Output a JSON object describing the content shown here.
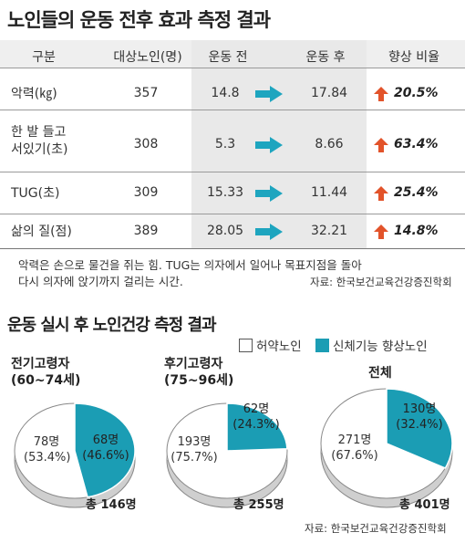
{
  "title": "노인들의 운동 전후 효과 측정 결과",
  "table": {
    "headers": [
      "구분",
      "대상노인(명)",
      "운동 전",
      "운동 후",
      "향상 비율"
    ],
    "rows": [
      {
        "label": "악력(㎏)",
        "n": "357",
        "before": "14.8",
        "after": "17.84",
        "improve": "20.5%"
      },
      {
        "label": "한 발 들고 서있기(초)",
        "label_lines": [
          "한 발 들고",
          "서있기(초)"
        ],
        "n": "308",
        "before": "5.3",
        "after": "8.66",
        "improve": "63.4%"
      },
      {
        "label": "TUG(초)",
        "n": "309",
        "before": "15.33",
        "after": "11.44",
        "improve": "25.4%"
      },
      {
        "label": "삶의 질(점)",
        "n": "389",
        "before": "28.05",
        "after": "32.21",
        "improve": "14.8%"
      }
    ]
  },
  "note_lines": [
    "악력은 손으로 물건을 쥐는 힘. TUG는 의자에서 일어나 목표지점을 돌아",
    "다시 의자에 앉기까지 걸리는 시간."
  ],
  "source1": "자료: 한국보건교육건강증진학회",
  "title2": "운동 실시 후 노인건강 측정 결과",
  "legend": {
    "frail": "허약노인",
    "improved": "신체기능 향상노인"
  },
  "colors": {
    "frail": "#ffffff",
    "improved": "#1b9db4",
    "arrow_right": "#1ea5bf",
    "arrow_up": "#e2532a",
    "shade": "#e9e9e9"
  },
  "pies": [
    {
      "title_lines": [
        "전기고령자",
        "(60~74세)"
      ],
      "frail_label": "78명",
      "frail_pct": "(53.4%)",
      "improved_label": "68명",
      "improved_pct": "(46.6%)",
      "total": "총 146명"
    },
    {
      "title_lines": [
        "후기고령자",
        "(75~96세)"
      ],
      "frail_label": "193명",
      "frail_pct": "(75.7%)",
      "improved_label": "62명",
      "improved_pct": "(24.3%)",
      "total": "총 255명"
    },
    {
      "title_lines": [
        "전체"
      ],
      "frail_label": "271명",
      "frail_pct": "(67.6%)",
      "improved_label": "130명",
      "improved_pct": "(32.4%)",
      "total": "총 401명"
    }
  ],
  "source2": "자료: 한국보건교육건강증진학회",
  "chart_data": [
    {
      "type": "table",
      "title": "노인들의 운동 전후 효과 측정 결과",
      "columns": [
        "구분",
        "대상노인(명)",
        "운동 전",
        "운동 후",
        "향상 비율"
      ],
      "rows": [
        [
          "악력(㎏)",
          357,
          14.8,
          17.84,
          "20.5%"
        ],
        [
          "한 발 들고 서있기(초)",
          308,
          5.3,
          8.66,
          "63.4%"
        ],
        [
          "TUG(초)",
          309,
          15.33,
          11.44,
          "25.4%"
        ],
        [
          "삶의 질(점)",
          389,
          28.05,
          32.21,
          "14.8%"
        ]
      ]
    },
    {
      "type": "pie",
      "title": "전기고령자 (60~74세)",
      "categories": [
        "허약노인",
        "신체기능 향상노인"
      ],
      "values": [
        78,
        68
      ],
      "percents": [
        53.4,
        46.6
      ],
      "total": 146
    },
    {
      "type": "pie",
      "title": "후기고령자 (75~96세)",
      "categories": [
        "허약노인",
        "신체기능 향상노인"
      ],
      "values": [
        193,
        62
      ],
      "percents": [
        75.7,
        24.3
      ],
      "total": 255
    },
    {
      "type": "pie",
      "title": "전체",
      "categories": [
        "허약노인",
        "신체기능 향상노인"
      ],
      "values": [
        271,
        130
      ],
      "percents": [
        67.6,
        32.4
      ],
      "total": 401
    }
  ]
}
